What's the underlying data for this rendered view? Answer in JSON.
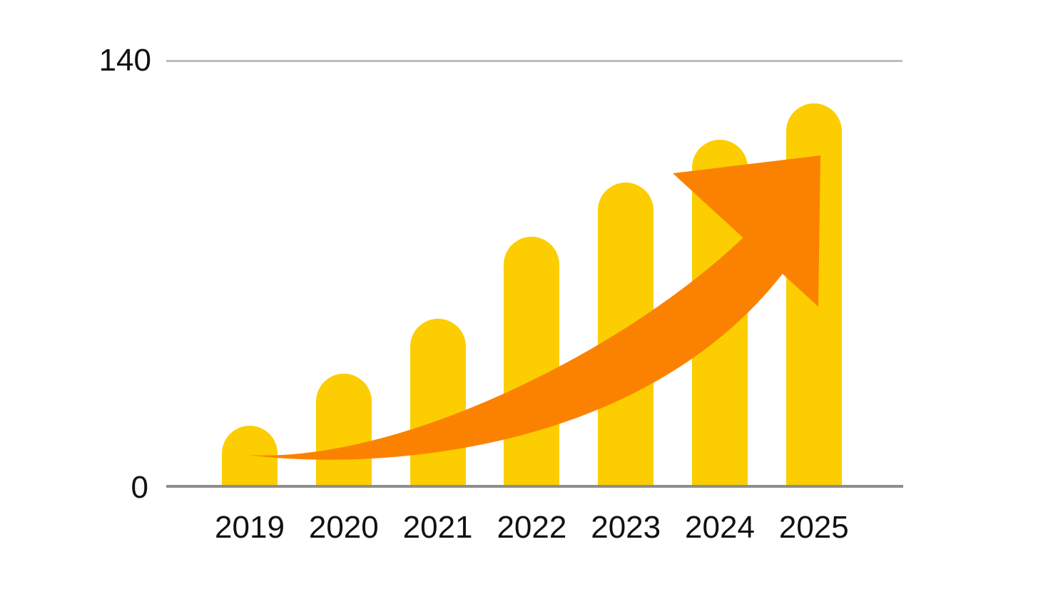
{
  "chart_data": {
    "type": "bar",
    "title": "",
    "xlabel": "",
    "ylabel": "",
    "categories": [
      "2019",
      "2020",
      "2021",
      "2022",
      "2023",
      "2024",
      "2025"
    ],
    "values": [
      20,
      37,
      55,
      82,
      100,
      114,
      126
    ],
    "ylim": [
      0,
      140
    ],
    "yticks": [
      0,
      140
    ],
    "grid": "single horizontal gridline at y=140 and x-axis baseline at y=0",
    "legend": "none",
    "annotation": "orange upward-curving growth arrow sweeping from the 2019 bar to above the 2025 bar"
  },
  "axis_labels": {
    "top": "140",
    "bottom": "0"
  },
  "colors": {
    "bar": "#FCCD00",
    "arrow": "#FB8200",
    "gridline": "#BDBDBD",
    "axis_line": "#8E8E8E",
    "text": "#111111",
    "background": "#FFFFFF"
  }
}
